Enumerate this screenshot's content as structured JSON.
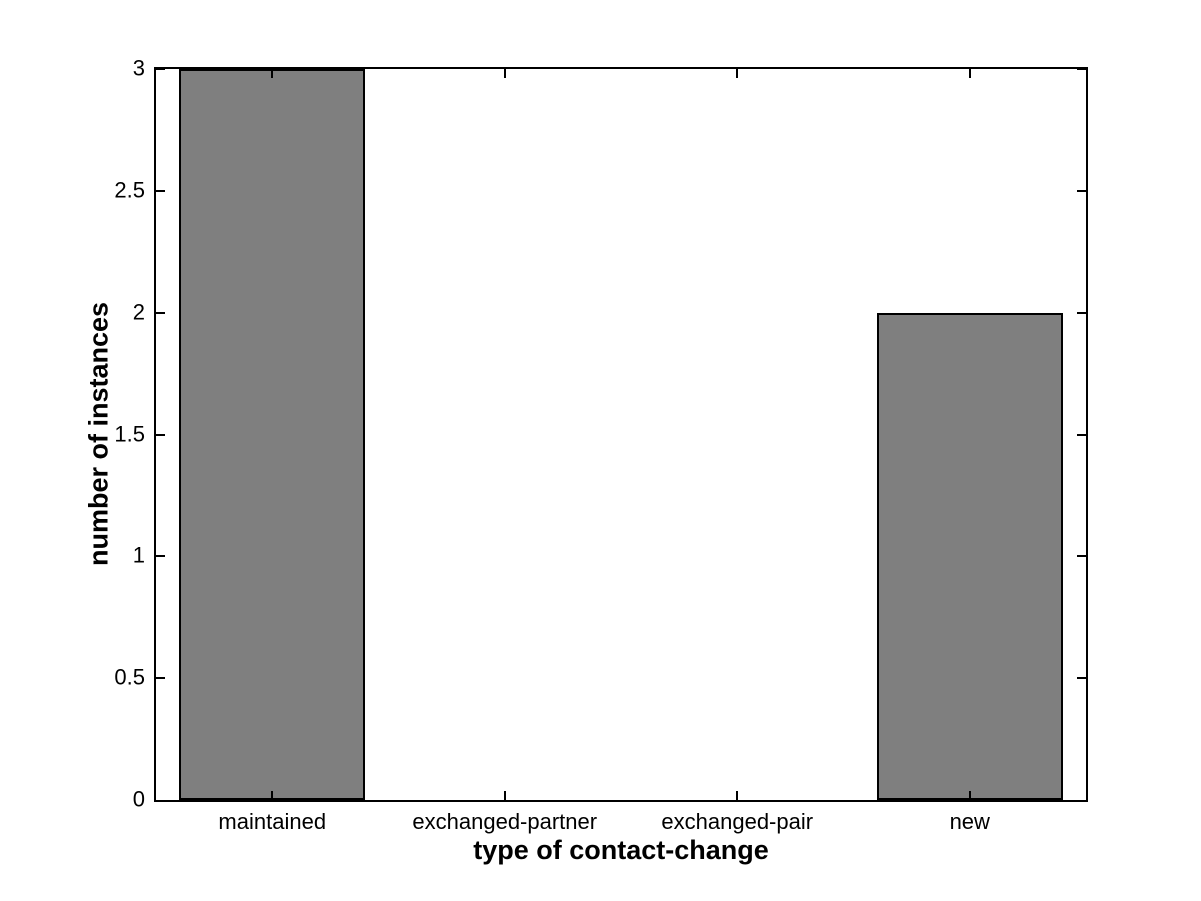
{
  "chart_data": {
    "type": "bar",
    "title": "",
    "categories": [
      "maintained",
      "exchanged-partner",
      "exchanged-pair",
      "new"
    ],
    "values": [
      3,
      0,
      0,
      2
    ],
    "xlabel": "type of contact-change",
    "ylabel": "number of instances",
    "xlim": [
      0.5,
      4.5
    ],
    "ylim": [
      0,
      3
    ],
    "yticks": [
      0,
      0.5,
      1,
      1.5,
      2,
      2.5,
      3
    ],
    "ytick_labels": [
      "0",
      "0.5",
      "1",
      "1.5",
      "2",
      "2.5",
      "3"
    ],
    "bar_width_fraction": 0.8,
    "bar_color": "#7f7f7f",
    "bar_edge_color": "#000000",
    "axis_color": "#000000",
    "background_color": "#ffffff",
    "grid": false,
    "legend": null,
    "tick_direction": "in",
    "box": true
  }
}
